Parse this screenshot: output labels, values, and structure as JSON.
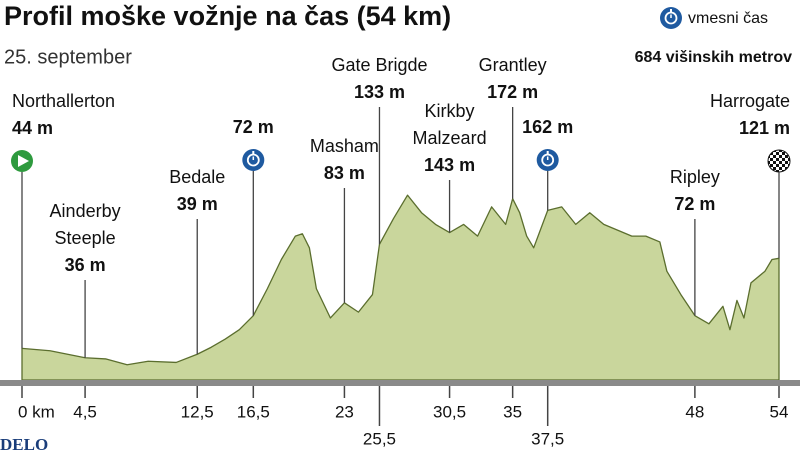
{
  "chart_data": {
    "type": "area",
    "title": "Profil moške vožnje na čas (54 km)",
    "subtitle": "25. september",
    "legend_label": "vmesni čas",
    "climb_total": "684 višinskih metrov",
    "publisher": "DELO",
    "x": [
      0,
      2,
      4.5,
      6,
      7.5,
      9,
      11,
      12.5,
      13.5,
      14.5,
      15.5,
      16.5,
      17.5,
      18.5,
      19.5,
      20,
      20.5,
      21,
      22,
      23,
      24,
      25,
      25.5,
      26.5,
      27.5,
      28.5,
      29.5,
      30.5,
      31.5,
      32.5,
      33.5,
      34.5,
      35,
      35.5,
      36,
      36.5,
      37.5,
      38.5,
      39.5,
      40.5,
      41.5,
      42.5,
      43.5,
      44.5,
      45.5,
      46,
      47,
      48,
      49,
      50,
      50.5,
      51,
      51.5,
      52,
      53,
      53.5,
      54
    ],
    "values": [
      44,
      42,
      36,
      35,
      30,
      33,
      32,
      39,
      45,
      52,
      60,
      72,
      95,
      120,
      140,
      142,
      130,
      95,
      70,
      83,
      75,
      90,
      133,
      155,
      175,
      160,
      150,
      143,
      150,
      140,
      165,
      150,
      172,
      160,
      140,
      130,
      162,
      165,
      150,
      160,
      150,
      145,
      140,
      140,
      135,
      110,
      90,
      72,
      65,
      80,
      60,
      85,
      70,
      100,
      110,
      120,
      121
    ],
    "color": "#c9d69c",
    "line_color": "#5b6e2e",
    "xlim": [
      0,
      54
    ],
    "ylim": [
      17,
      250
    ],
    "xticks": [
      {
        "value": 0,
        "label": "0 km"
      },
      {
        "value": 4.5,
        "label": "4,5"
      },
      {
        "value": 12.5,
        "label": "12,5"
      },
      {
        "value": 16.5,
        "label": "16,5"
      },
      23,
      {
        "value": 25.5,
        "label": "25,5"
      },
      {
        "value": 30.5,
        "label": "30,5"
      },
      35,
      {
        "value": 37.5,
        "label": "37,5"
      },
      48,
      54
    ],
    "landmarks": {
      "names": [
        [
          "Northallerton"
        ],
        [
          "Ainderby",
          "Steeple"
        ],
        [
          "Bedale"
        ],
        [],
        [
          "Masham"
        ],
        [
          "Gate Brigde"
        ],
        [
          "Kirkby",
          "Malzeard"
        ],
        [
          "Grantley"
        ],
        [],
        [
          "Ripley"
        ],
        [
          "Harrogate"
        ]
      ],
      "km": [
        0,
        4.5,
        12.5,
        16.5,
        23,
        25.5,
        30.5,
        35,
        37.5,
        48,
        54
      ],
      "values": [
        44,
        36,
        39,
        72,
        83,
        133,
        143,
        172,
        162,
        72,
        121
      ],
      "value_labels": [
        "44 m",
        "36 m",
        "39 m",
        "72 m",
        "83 m",
        "133 m",
        "143 m",
        "172 m",
        "162 m",
        "72 m",
        "121 m"
      ],
      "icons": [
        "start",
        null,
        null,
        "time-check",
        null,
        null,
        null,
        null,
        "time-check",
        null,
        "finish"
      ]
    }
  }
}
